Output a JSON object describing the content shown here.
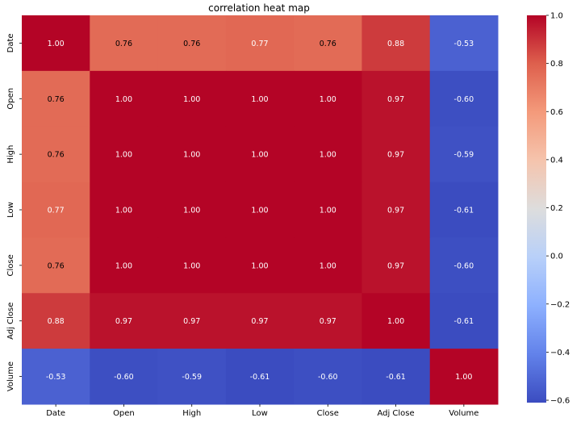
{
  "chart_data": {
    "type": "heatmap",
    "title": "correlation heat map",
    "xlabel": "",
    "ylabel": "",
    "x_categories": [
      "Date",
      "Open",
      "High",
      "Low",
      "Close",
      "Adj Close",
      "Volume"
    ],
    "y_categories": [
      "Date",
      "Open",
      "High",
      "Low",
      "Close",
      "Adj Close",
      "Volume"
    ],
    "values": [
      [
        1.0,
        0.76,
        0.76,
        0.77,
        0.76,
        0.88,
        -0.53
      ],
      [
        0.76,
        1.0,
        1.0,
        1.0,
        1.0,
        0.97,
        -0.6
      ],
      [
        0.76,
        1.0,
        1.0,
        1.0,
        1.0,
        0.97,
        -0.59
      ],
      [
        0.77,
        1.0,
        1.0,
        1.0,
        1.0,
        0.97,
        -0.61
      ],
      [
        0.76,
        1.0,
        1.0,
        1.0,
        1.0,
        0.97,
        -0.6
      ],
      [
        0.88,
        0.97,
        0.97,
        0.97,
        0.97,
        1.0,
        -0.61
      ],
      [
        -0.53,
        -0.6,
        -0.59,
        -0.61,
        -0.6,
        -0.61,
        1.0
      ]
    ],
    "annotation_format": "0.00",
    "colormap": "coolwarm",
    "color_range": [
      -0.61,
      1.0
    ],
    "colorbar": {
      "ticks": [
        1.0,
        0.8,
        0.6,
        0.4,
        0.2,
        0.0,
        -0.2,
        -0.4,
        -0.6
      ],
      "tick_labels": [
        "1.0",
        "0.8",
        "0.6",
        "0.4",
        "0.2",
        "0.0",
        "−0.2",
        "−0.4",
        "−0.6"
      ],
      "placement": "right"
    },
    "grid": false
  }
}
